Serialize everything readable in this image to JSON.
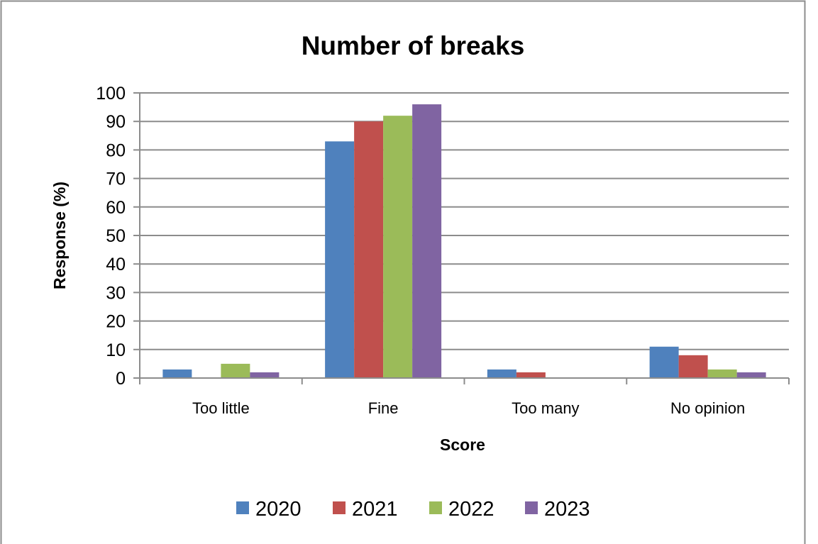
{
  "chart_data": {
    "type": "bar",
    "title": "Number of breaks",
    "xlabel": "Score",
    "ylabel": "Response (%)",
    "categories": [
      "Too little",
      "Fine",
      "Too many",
      "No opinion"
    ],
    "ylim": [
      0,
      100
    ],
    "yticks": [
      "0",
      "10",
      "20",
      "30",
      "40",
      "50",
      "60",
      "70",
      "80",
      "90",
      "100"
    ],
    "grid": true,
    "legend_position": "bottom",
    "series": [
      {
        "name": "2020",
        "color": "#4F81BD",
        "values": [
          3,
          83,
          3,
          11
        ]
      },
      {
        "name": "2021",
        "color": "#C0504D",
        "values": [
          0,
          90,
          2,
          8
        ]
      },
      {
        "name": "2022",
        "color": "#9BBB59",
        "values": [
          5,
          92,
          0,
          3
        ]
      },
      {
        "name": "2023",
        "color": "#8064A2",
        "values": [
          2,
          96,
          0,
          2
        ]
      }
    ]
  }
}
